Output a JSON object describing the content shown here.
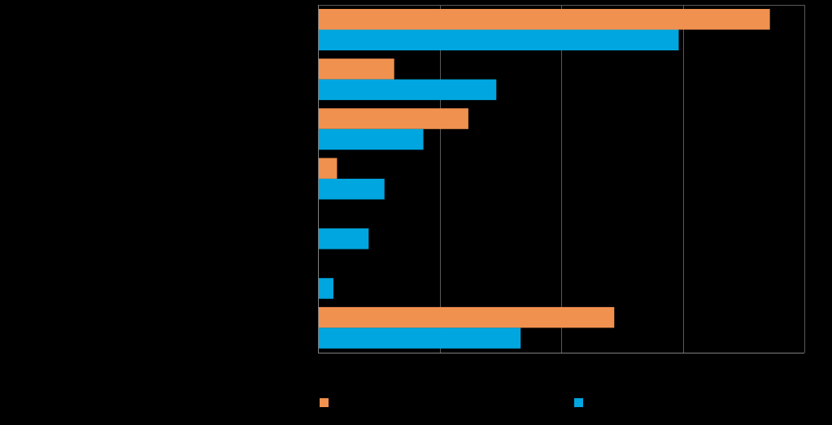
{
  "chart_data": {
    "type": "bar",
    "orientation": "horizontal",
    "title": "",
    "xlabel": "",
    "ylabel": "",
    "categories": [
      "",
      "",
      "",
      "",
      "",
      "",
      ""
    ],
    "xlim": [
      0,
      40
    ],
    "gridlines": [
      0,
      10,
      20,
      30,
      40
    ],
    "grid": true,
    "legend_position": "bottom",
    "series": [
      {
        "name": "",
        "color": "#F0914F",
        "values": [
          37.1,
          6.2,
          12.3,
          1.5,
          0,
          0,
          24.3
        ]
      },
      {
        "name": "",
        "color": "#00A6DF",
        "values": [
          29.6,
          14.6,
          8.6,
          5.4,
          4.1,
          1.2,
          16.6
        ]
      }
    ]
  }
}
